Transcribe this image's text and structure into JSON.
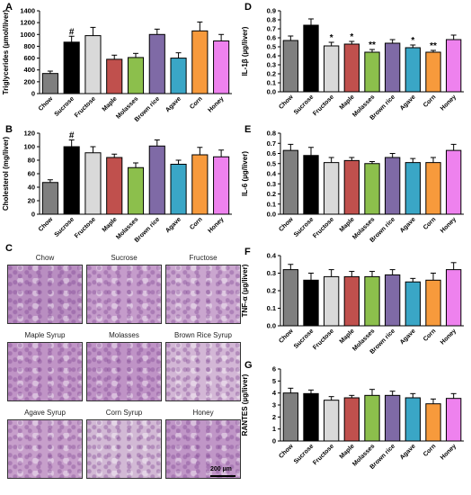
{
  "panels": {
    "A": "A",
    "B": "B",
    "C": "C",
    "D": "D",
    "E": "E",
    "F": "F",
    "G": "G"
  },
  "histology": {
    "labels": [
      "Chow",
      "Sucrose",
      "Fructose",
      "Maple Syrup",
      "Molasses",
      "Brown Rice Syrup",
      "Agave Syrup",
      "Corn Syrup",
      "Honey"
    ],
    "tile_colors": [
      "#b98ec1",
      "#c59ccb",
      "#caa6cf",
      "#c094c6",
      "#bf93c6",
      "#d3b7d6",
      "#c79fcb",
      "#d2b9d5",
      "#c096c7"
    ],
    "scale_label": "200 µm"
  },
  "chart_data": [
    {
      "panel": "A",
      "type": "bar",
      "ylabel": "Triglycerides (µmol/liver)",
      "ylim": [
        0,
        1400
      ],
      "yticks": [
        0,
        200,
        400,
        600,
        800,
        1000,
        1200,
        1400
      ],
      "categories": [
        "Chow",
        "Sucrose",
        "Fructose",
        "Maple",
        "Molasses",
        "Brown rice",
        "Agave",
        "Corn",
        "Honey"
      ],
      "values": [
        340,
        870,
        980,
        580,
        610,
        1000,
        600,
        1060,
        890
      ],
      "errors": [
        40,
        100,
        140,
        70,
        70,
        90,
        90,
        150,
        110
      ],
      "sig": [
        "",
        "#",
        "",
        "",
        "",
        "",
        "",
        "",
        ""
      ],
      "colors": [
        "#7f7f7f",
        "#000000",
        "#d9d9d9",
        "#c0504d",
        "#8cbf4c",
        "#7f6aa6",
        "#3aa6c6",
        "#f79a3c",
        "#ee82ee"
      ]
    },
    {
      "panel": "B",
      "type": "bar",
      "ylabel": "Cholesterol (mg/liver)",
      "ylim": [
        0,
        120
      ],
      "yticks": [
        0,
        20,
        40,
        60,
        80,
        100,
        120
      ],
      "categories": [
        "Chow",
        "Sucrose",
        "Fructose",
        "Maple",
        "Molasses",
        "Brown rice",
        "Agave",
        "Corn",
        "Honey"
      ],
      "values": [
        47,
        100,
        91,
        84,
        69,
        101,
        74,
        88,
        85
      ],
      "errors": [
        4,
        10,
        9,
        5,
        7,
        9,
        6,
        11,
        10
      ],
      "sig": [
        "",
        "#",
        "",
        "",
        "",
        "",
        "",
        "",
        ""
      ],
      "colors": [
        "#7f7f7f",
        "#000000",
        "#d9d9d9",
        "#c0504d",
        "#8cbf4c",
        "#7f6aa6",
        "#3aa6c6",
        "#f79a3c",
        "#ee82ee"
      ]
    },
    {
      "panel": "D",
      "type": "bar",
      "ylabel": "IL-1β (µg/liver)",
      "ylim": [
        0,
        0.9
      ],
      "yticks": [
        0,
        0.1,
        0.2,
        0.3,
        0.4,
        0.5,
        0.6,
        0.7,
        0.8,
        0.9
      ],
      "categories": [
        "Chow",
        "Sucrose",
        "Fructose",
        "Maple",
        "Molasses",
        "Brown rice",
        "Agave",
        "Corn",
        "Honey"
      ],
      "values": [
        0.57,
        0.74,
        0.51,
        0.53,
        0.44,
        0.54,
        0.49,
        0.44,
        0.58
      ],
      "errors": [
        0.05,
        0.07,
        0.04,
        0.03,
        0.03,
        0.04,
        0.03,
        0.02,
        0.05
      ],
      "sig": [
        "",
        "",
        "*",
        "*",
        "**",
        "",
        "*",
        "**",
        ""
      ],
      "colors": [
        "#7f7f7f",
        "#000000",
        "#d9d9d9",
        "#c0504d",
        "#8cbf4c",
        "#7f6aa6",
        "#3aa6c6",
        "#f79a3c",
        "#ee82ee"
      ]
    },
    {
      "panel": "E",
      "type": "bar",
      "ylabel": "IL-6 (µg/liver)",
      "ylim": [
        0,
        0.8
      ],
      "yticks": [
        0,
        0.1,
        0.2,
        0.3,
        0.4,
        0.5,
        0.6,
        0.7,
        0.8
      ],
      "categories": [
        "Chow",
        "Sucrose",
        "Fructose",
        "Maple",
        "Molasses",
        "Brown rice",
        "Agave",
        "Corn",
        "Honey"
      ],
      "values": [
        0.63,
        0.58,
        0.51,
        0.53,
        0.5,
        0.56,
        0.51,
        0.51,
        0.63
      ],
      "errors": [
        0.06,
        0.08,
        0.05,
        0.03,
        0.02,
        0.04,
        0.04,
        0.05,
        0.06
      ],
      "sig": [
        "",
        "",
        "",
        "",
        "",
        "",
        "",
        "",
        ""
      ],
      "colors": [
        "#7f7f7f",
        "#000000",
        "#d9d9d9",
        "#c0504d",
        "#8cbf4c",
        "#7f6aa6",
        "#3aa6c6",
        "#f79a3c",
        "#ee82ee"
      ]
    },
    {
      "panel": "F",
      "type": "bar",
      "ylabel": "TNF-α (µg/liver)",
      "ylim": [
        0,
        0.4
      ],
      "yticks": [
        0,
        0.1,
        0.2,
        0.3,
        0.4
      ],
      "categories": [
        "Chow",
        "Sucrose",
        "Fructose",
        "Maple",
        "Molasses",
        "Brown rice",
        "Agave",
        "Corn",
        "Honey"
      ],
      "values": [
        0.32,
        0.26,
        0.28,
        0.28,
        0.28,
        0.29,
        0.25,
        0.26,
        0.32
      ],
      "errors": [
        0.03,
        0.04,
        0.04,
        0.03,
        0.03,
        0.03,
        0.02,
        0.04,
        0.04
      ],
      "sig": [
        "",
        "",
        "",
        "",
        "",
        "",
        "",
        "",
        ""
      ],
      "colors": [
        "#7f7f7f",
        "#000000",
        "#d9d9d9",
        "#c0504d",
        "#8cbf4c",
        "#7f6aa6",
        "#3aa6c6",
        "#f79a3c",
        "#ee82ee"
      ]
    },
    {
      "panel": "G",
      "type": "bar",
      "ylabel": "RANTES (µg/liver)",
      "ylim": [
        0,
        6
      ],
      "yticks": [
        0,
        1,
        2,
        3,
        4,
        5,
        6
      ],
      "categories": [
        "Chow",
        "Sucrose",
        "Fructose",
        "Maple",
        "Molasses",
        "Brown rice",
        "Agave",
        "Corn",
        "Honey"
      ],
      "values": [
        4.0,
        3.95,
        3.4,
        3.6,
        3.8,
        3.8,
        3.6,
        3.1,
        3.55
      ],
      "errors": [
        0.4,
        0.3,
        0.3,
        0.2,
        0.5,
        0.35,
        0.35,
        0.4,
        0.4
      ],
      "sig": [
        "",
        "",
        "",
        "",
        "",
        "",
        "",
        "",
        ""
      ],
      "colors": [
        "#7f7f7f",
        "#000000",
        "#d9d9d9",
        "#c0504d",
        "#8cbf4c",
        "#7f6aa6",
        "#3aa6c6",
        "#f79a3c",
        "#ee82ee"
      ]
    }
  ]
}
